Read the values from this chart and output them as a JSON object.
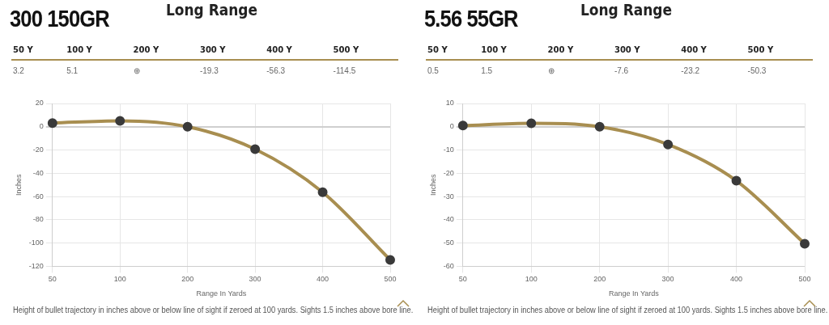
{
  "chart_data": [
    {
      "type": "line",
      "title": "300 150GR",
      "subtitle": "Long Range",
      "xlabel": "Range In Yards",
      "ylabel": "Inches",
      "categories": [
        "50",
        "100",
        "200",
        "300",
        "400",
        "500"
      ],
      "series": [
        {
          "color": "#a88e50",
          "values": [
            3.2,
            5.1,
            0,
            -19.3,
            -56.3,
            -114.5
          ]
        }
      ],
      "value_labels": [
        "3.2",
        "5.1",
        "⊕",
        "-19.3",
        "-56.3",
        "-114.5"
      ],
      "annotations": [
        "50 Y",
        "100 Y",
        "200 Y",
        "300 Y",
        "400 Y",
        "500 Y",
        "Height of bullet trajectory in inches above or below line of sight if zeroed at 100 yards. Sights 1.5 inches above bore line."
      ],
      "ylim": [
        -120,
        20
      ],
      "yticks": [
        -120,
        -100,
        -80,
        -60,
        -40,
        -20,
        0,
        20
      ],
      "grid": true,
      "legend": false,
      "marker": "circle"
    },
    {
      "type": "line",
      "title": "5.56 55GR",
      "subtitle": "Long Range",
      "xlabel": "Range In Yards",
      "ylabel": "Inches",
      "categories": [
        "50",
        "100",
        "200",
        "300",
        "400",
        "500"
      ],
      "series": [
        {
          "color": "#a88e50",
          "values": [
            0.5,
            1.5,
            0,
            -7.6,
            -23.2,
            -50.3
          ]
        }
      ],
      "value_labels": [
        "0.5",
        "1.5",
        "⊕",
        "-7.6",
        "-23.2",
        "-50.3"
      ],
      "annotations": [
        "50 Y",
        "100 Y",
        "200 Y",
        "300 Y",
        "400 Y",
        "500 Y",
        "Height of bullet trajectory in inches above or below line of sight if zeroed at 100 yards. Sights 1.5 inches above bore line."
      ],
      "ylim": [
        -60,
        10
      ],
      "yticks": [
        -60,
        -50,
        -40,
        -30,
        -20,
        -10,
        0,
        10
      ],
      "grid": true,
      "legend": false,
      "marker": "circle"
    }
  ]
}
